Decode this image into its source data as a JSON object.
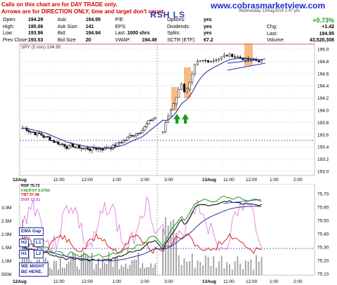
{
  "note_lines": [
    "Calls on this chart are for DAY TRADE only.",
    "Arrows are for DIRECTION ONLY, time and target don't count."
  ],
  "site": "www.cobrasmarketview.com",
  "ticker_title": "RSH LS",
  "date_header": "Wednesday 13Aug2014 1:47 pm",
  "quote": {
    "open": {
      "label": "Open:",
      "value": "194.29"
    },
    "high": {
      "label": "High:",
      "value": "195.06"
    },
    "low": {
      "label": "Low:",
      "value": "193.96"
    },
    "prev_close": {
      "label": "Prev Close:",
      "value": "193.53"
    },
    "ask": {
      "label": "Ask:",
      "value": "194.95"
    },
    "ask_size": {
      "label": "Ask Size:",
      "value": "141"
    },
    "bid": {
      "label": "Bid:",
      "value": "194.94"
    },
    "bid_size": {
      "label": "Bid Size:",
      "value": "20"
    },
    "pe": {
      "label": "P/E:",
      "value": ""
    },
    "eps": {
      "label": "EPS:",
      "value": ""
    },
    "last": {
      "label": "Last:",
      "value": "1000 shrs"
    },
    "vwap": {
      "label": "VWAP:",
      "value": "194.49"
    },
    "options": {
      "label": "Options:",
      "value": "yes"
    },
    "dividends": {
      "label": "Dividends:",
      "value": "yes"
    },
    "splits": {
      "label": "Splits:",
      "value": "yes"
    },
    "sctr": {
      "label": "SCTR (ETF):",
      "value": "67.2"
    },
    "pct": {
      "label": "",
      "value": "+0.73%"
    },
    "chg": {
      "label": "Chg:",
      "value": "+1.42"
    },
    "last_price": {
      "label": "Last:",
      "value": "194.95"
    },
    "volume": {
      "label": "Volume:",
      "value": "43,520,308"
    }
  },
  "price_legend": "SPY (5 min) 194.95",
  "price_axis": [
    "195.0",
    "194.8",
    "194.6",
    "194.4",
    "194.2",
    "194.0",
    "193.8",
    "193.6",
    "193.4",
    "193.2",
    "193.0"
  ],
  "time_axis_top": [
    "12Aug",
    "11:00",
    "12:00",
    "1:00",
    "2:00",
    "3:00",
    "13Aug",
    "11:00",
    "12:00",
    "1:00",
    "2:00",
    "3:00"
  ],
  "time_axis_bottom": [
    "12Aug",
    "11:00",
    "12:00",
    "1:00",
    "2:00",
    "3:00",
    "13Aug",
    "11:00",
    "12:00",
    "1:00",
    "2:00",
    "3:00"
  ],
  "lower_legend": [
    {
      "text": "RSP 75.73",
      "color": "#000000"
    },
    {
      "text": "FXE/FXY 0.9766",
      "color": "#1b9a1b"
    },
    {
      "text": "TBT 57.98",
      "color": "#d01010"
    },
    {
      "text": "$VIX 13.01",
      "color": "#c040c0"
    }
  ],
  "lower_axis": [
    "75.70",
    "75.60",
    "75.50",
    "75.40",
    "75.30",
    "75.20",
    "75.10"
  ],
  "volume_axis": [
    "3.0M",
    "2.5M",
    "2.0M",
    "1.5M",
    "1.0M",
    "500K"
  ],
  "annotations": [
    "EMA Gap",
    "H2",
    "L1",
    "H1",
    "L2",
    "WE MIGHT BE HERE."
  ],
  "colors": {
    "site": "#1b2bd0",
    "title": "#2a3aa0",
    "note": "#d40000",
    "ema": "#3030a0",
    "green": "#1b9a1b",
    "red": "#d01010",
    "box": "#f5a050"
  }
}
